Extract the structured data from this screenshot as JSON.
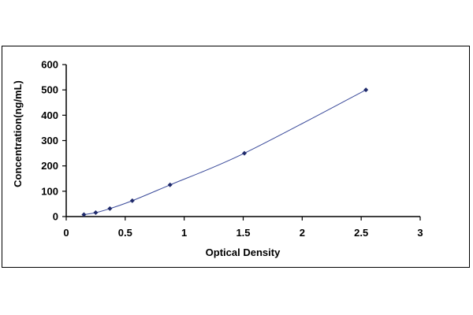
{
  "chart_data": {
    "type": "scatter",
    "title": "",
    "xlabel": "Optical Density",
    "ylabel": "Concentration(ng/mL)",
    "xlim": [
      0,
      3
    ],
    "ylim": [
      0,
      600
    ],
    "x_ticks": [
      "0",
      "0.5",
      "1",
      "1.5",
      "2",
      "2.5",
      "3"
    ],
    "y_ticks": [
      "0",
      "100",
      "200",
      "300",
      "400",
      "500",
      "600"
    ],
    "grid": false,
    "legend": "none",
    "series": [
      {
        "points": [
          {
            "x": 0.15,
            "y": 7.8
          },
          {
            "x": 0.25,
            "y": 15.6
          },
          {
            "x": 0.37,
            "y": 31.3
          },
          {
            "x": 0.56,
            "y": 62.5
          },
          {
            "x": 0.88,
            "y": 125
          },
          {
            "x": 1.51,
            "y": 250
          },
          {
            "x": 2.54,
            "y": 500
          }
        ],
        "marker_color": "#1f2a6b",
        "line_color": "#3a4a9a"
      }
    ]
  }
}
